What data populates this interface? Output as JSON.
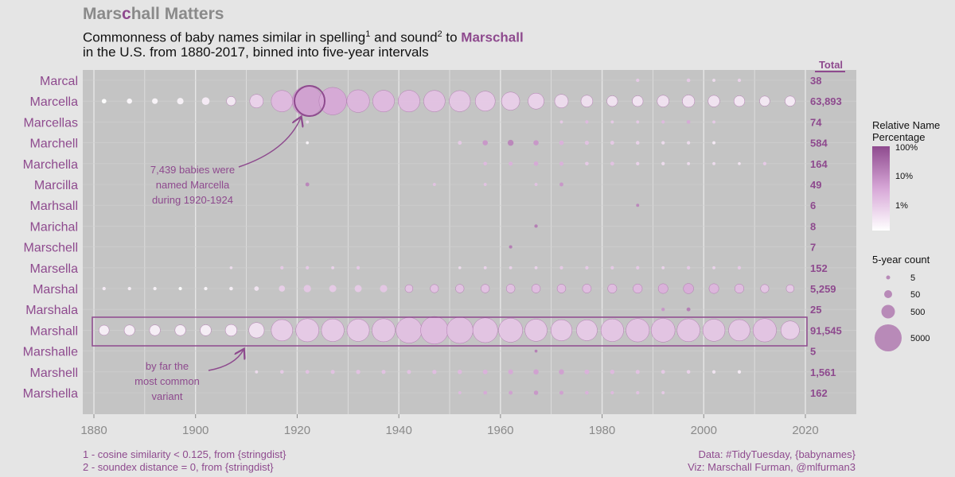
{
  "header": {
    "title_pre": "Mars",
    "title_hl": "c",
    "title_post": "hall Matters",
    "subtitle_1": "Commonness of baby names similar in spelling",
    "sup_1": "1",
    "subtitle_2": " and sound",
    "sup_2": "2",
    "subtitle_3": " to ",
    "subtitle_name": "Marschall",
    "subtitle_line2": "in the U.S. from 1880-2017, binned into five-year intervals"
  },
  "total_header": "Total",
  "annotations": {
    "marcella_1": "7,439 babies were",
    "marcella_2": "named Marcella",
    "marcella_3": "during 1920-1924",
    "marshall_1": "by far the",
    "marshall_2": "most common",
    "marshall_3": "variant"
  },
  "legend": {
    "color_title_1": "Relative Name",
    "color_title_2": "Percentage",
    "color_ticks": [
      "100%",
      "10%",
      "1%"
    ],
    "size_title": "5-year count",
    "size_ticks": [
      "5",
      "50",
      "500",
      "5000"
    ],
    "colors": {
      "low": "#ffffff",
      "high": "#8e4a8e"
    }
  },
  "footer": {
    "note_1": "1 - cosine similarity < 0.125, from {stringdist}",
    "note_2": "2 - soundex distance = 0, from {stringdist}",
    "source": "Data: #TidyTuesday, {babynames}",
    "credit": "Viz: Marschall Furman, @mlfurman3"
  },
  "chart_data": {
    "type": "scatter",
    "x_label": "",
    "x_ticks": [
      1880,
      1900,
      1920,
      1940,
      1960,
      1980,
      2000,
      2020
    ],
    "xlim": [
      1880,
      2020
    ],
    "bins": [
      1882,
      1887,
      1892,
      1897,
      1902,
      1907,
      1912,
      1917,
      1922,
      1927,
      1932,
      1937,
      1942,
      1947,
      1952,
      1957,
      1962,
      1967,
      1972,
      1977,
      1982,
      1987,
      1992,
      1997,
      2002,
      2007,
      2012,
      2017
    ],
    "size_meaning": "5-year count",
    "color_meaning": "relative name percentage (log scale)",
    "names": [
      {
        "name": "Marcal",
        "total": "38",
        "points": [
          [
            1987,
            8,
            0.3
          ],
          [
            1997,
            10,
            0.3
          ],
          [
            2002,
            6,
            0.2
          ],
          [
            2007,
            8,
            0.25
          ]
        ]
      },
      {
        "name": "Marcella",
        "total": "63,893",
        "points": [
          [
            1882,
            20,
            0.0
          ],
          [
            1887,
            30,
            0.03
          ],
          [
            1892,
            40,
            0.05
          ],
          [
            1897,
            60,
            0.07
          ],
          [
            1902,
            100,
            0.1
          ],
          [
            1907,
            180,
            0.12
          ],
          [
            1912,
            600,
            0.25
          ],
          [
            1917,
            2500,
            0.4
          ],
          [
            1922,
            7439,
            0.55
          ],
          [
            1927,
            5500,
            0.5
          ],
          [
            1932,
            3000,
            0.42
          ],
          [
            1937,
            2600,
            0.4
          ],
          [
            1942,
            2600,
            0.38
          ],
          [
            1947,
            2500,
            0.35
          ],
          [
            1952,
            2400,
            0.32
          ],
          [
            1957,
            2000,
            0.3
          ],
          [
            1962,
            1500,
            0.28
          ],
          [
            1967,
            1000,
            0.25
          ],
          [
            1972,
            600,
            0.2
          ],
          [
            1977,
            400,
            0.17
          ],
          [
            1982,
            300,
            0.15
          ],
          [
            1987,
            300,
            0.14
          ],
          [
            1992,
            400,
            0.16
          ],
          [
            1997,
            450,
            0.16
          ],
          [
            2002,
            380,
            0.15
          ],
          [
            2007,
            300,
            0.13
          ],
          [
            2012,
            250,
            0.12
          ],
          [
            2017,
            250,
            0.1
          ]
        ]
      },
      {
        "name": "Marcellas",
        "total": "74",
        "points": [
          [
            1922,
            6,
            0.2
          ],
          [
            1972,
            6,
            0.3
          ],
          [
            1977,
            8,
            0.4
          ],
          [
            1982,
            6,
            0.3
          ],
          [
            1987,
            6,
            0.3
          ],
          [
            1992,
            8,
            0.4
          ],
          [
            1997,
            10,
            0.5
          ],
          [
            2002,
            6,
            0.3
          ]
        ]
      },
      {
        "name": "Marchell",
        "total": "584",
        "points": [
          [
            1922,
            5,
            0.05
          ],
          [
            1952,
            12,
            0.3
          ],
          [
            1957,
            30,
            0.6
          ],
          [
            1962,
            45,
            0.7
          ],
          [
            1967,
            30,
            0.6
          ],
          [
            1972,
            20,
            0.45
          ],
          [
            1977,
            15,
            0.35
          ],
          [
            1982,
            12,
            0.3
          ],
          [
            1987,
            10,
            0.25
          ],
          [
            1992,
            8,
            0.2
          ],
          [
            1997,
            8,
            0.2
          ],
          [
            2002,
            6,
            0.1
          ]
        ]
      },
      {
        "name": "Marchella",
        "total": "164",
        "points": [
          [
            1957,
            10,
            0.4
          ],
          [
            1962,
            14,
            0.45
          ],
          [
            1967,
            18,
            0.5
          ],
          [
            1972,
            14,
            0.45
          ],
          [
            1977,
            10,
            0.3
          ],
          [
            1982,
            12,
            0.35
          ],
          [
            1987,
            8,
            0.25
          ],
          [
            1992,
            8,
            0.2
          ],
          [
            1997,
            6,
            0.2
          ],
          [
            2002,
            6,
            0.2
          ],
          [
            2007,
            5,
            0.15
          ],
          [
            2012,
            8,
            0.3
          ]
        ]
      },
      {
        "name": "Marcilla",
        "total": "49",
        "points": [
          [
            1922,
            12,
            0.7
          ],
          [
            1947,
            6,
            0.35
          ],
          [
            1957,
            6,
            0.35
          ],
          [
            1967,
            6,
            0.35
          ],
          [
            1972,
            12,
            0.6
          ]
        ]
      },
      {
        "name": "Marhsall",
        "total": "6",
        "points": [
          [
            1987,
            6,
            0.7
          ]
        ]
      },
      {
        "name": "Marichal",
        "total": "8",
        "points": [
          [
            1967,
            8,
            0.75
          ]
        ]
      },
      {
        "name": "Marschell",
        "total": "7",
        "points": [
          [
            1962,
            7,
            0.75
          ]
        ]
      },
      {
        "name": "Marsella",
        "total": "152",
        "points": [
          [
            1907,
            5,
            0.2
          ],
          [
            1917,
            8,
            0.3
          ],
          [
            1922,
            8,
            0.3
          ],
          [
            1927,
            6,
            0.25
          ],
          [
            1932,
            8,
            0.3
          ],
          [
            1952,
            5,
            0.2
          ],
          [
            1957,
            6,
            0.25
          ],
          [
            1962,
            6,
            0.25
          ],
          [
            1967,
            6,
            0.25
          ],
          [
            1972,
            8,
            0.3
          ],
          [
            1977,
            8,
            0.3
          ],
          [
            1982,
            8,
            0.3
          ],
          [
            1987,
            8,
            0.3
          ],
          [
            1992,
            6,
            0.25
          ],
          [
            1997,
            8,
            0.3
          ],
          [
            2002,
            6,
            0.25
          ],
          [
            2007,
            8,
            0.3
          ]
        ]
      },
      {
        "name": "Marshal",
        "total": "5,259",
        "points": [
          [
            1882,
            8,
            0.1
          ],
          [
            1887,
            8,
            0.08
          ],
          [
            1892,
            8,
            0.07
          ],
          [
            1897,
            8,
            0.0
          ],
          [
            1902,
            8,
            0.05
          ],
          [
            1907,
            10,
            0.08
          ],
          [
            1912,
            20,
            0.15
          ],
          [
            1917,
            50,
            0.28
          ],
          [
            1922,
            90,
            0.32
          ],
          [
            1927,
            80,
            0.3
          ],
          [
            1932,
            80,
            0.3
          ],
          [
            1937,
            90,
            0.32
          ],
          [
            1942,
            110,
            0.34
          ],
          [
            1947,
            130,
            0.35
          ],
          [
            1952,
            140,
            0.35
          ],
          [
            1957,
            140,
            0.35
          ],
          [
            1962,
            150,
            0.36
          ],
          [
            1967,
            150,
            0.38
          ],
          [
            1972,
            150,
            0.38
          ],
          [
            1977,
            160,
            0.38
          ],
          [
            1982,
            170,
            0.38
          ],
          [
            1987,
            180,
            0.4
          ],
          [
            1992,
            220,
            0.45
          ],
          [
            1997,
            250,
            0.48
          ],
          [
            2002,
            220,
            0.42
          ],
          [
            2007,
            180,
            0.38
          ],
          [
            2012,
            130,
            0.33
          ],
          [
            2017,
            110,
            0.3
          ]
        ]
      },
      {
        "name": "Marshala",
        "total": "25",
        "points": [
          [
            1992,
            8,
            0.6
          ],
          [
            1997,
            12,
            0.75
          ]
        ]
      },
      {
        "name": "Marshall",
        "total": "91,545",
        "points": [
          [
            1882,
            250,
            0.08
          ],
          [
            1887,
            280,
            0.08
          ],
          [
            1892,
            300,
            0.08
          ],
          [
            1897,
            300,
            0.08
          ],
          [
            1902,
            320,
            0.08
          ],
          [
            1907,
            380,
            0.1
          ],
          [
            1912,
            900,
            0.16
          ],
          [
            1917,
            2500,
            0.28
          ],
          [
            1922,
            3200,
            0.3
          ],
          [
            1927,
            3000,
            0.3
          ],
          [
            1932,
            2900,
            0.3
          ],
          [
            1937,
            3200,
            0.32
          ],
          [
            1942,
            4500,
            0.36
          ],
          [
            1947,
            5500,
            0.38
          ],
          [
            1952,
            4800,
            0.36
          ],
          [
            1957,
            4000,
            0.34
          ],
          [
            1962,
            3600,
            0.33
          ],
          [
            1967,
            2800,
            0.31
          ],
          [
            1972,
            2400,
            0.3
          ],
          [
            1977,
            2300,
            0.3
          ],
          [
            1982,
            3000,
            0.33
          ],
          [
            1987,
            3300,
            0.34
          ],
          [
            1992,
            3500,
            0.34
          ],
          [
            1997,
            3100,
            0.33
          ],
          [
            2002,
            2800,
            0.32
          ],
          [
            2007,
            2500,
            0.31
          ],
          [
            2012,
            3300,
            0.34
          ],
          [
            2017,
            1600,
            0.28
          ]
        ]
      },
      {
        "name": "Marshalle",
        "total": "5",
        "points": [
          [
            1967,
            5,
            0.75
          ]
        ]
      },
      {
        "name": "Marshell",
        "total": "1,561",
        "points": [
          [
            1912,
            6,
            0.2
          ],
          [
            1917,
            10,
            0.3
          ],
          [
            1922,
            12,
            0.35
          ],
          [
            1927,
            14,
            0.35
          ],
          [
            1932,
            16,
            0.35
          ],
          [
            1937,
            14,
            0.35
          ],
          [
            1942,
            14,
            0.35
          ],
          [
            1947,
            16,
            0.38
          ],
          [
            1952,
            18,
            0.4
          ],
          [
            1957,
            22,
            0.45
          ],
          [
            1962,
            26,
            0.5
          ],
          [
            1967,
            30,
            0.55
          ],
          [
            1972,
            30,
            0.55
          ],
          [
            1977,
            22,
            0.45
          ],
          [
            1982,
            18,
            0.4
          ],
          [
            1987,
            14,
            0.35
          ],
          [
            1992,
            12,
            0.3
          ],
          [
            1997,
            10,
            0.25
          ],
          [
            2002,
            8,
            0.15
          ],
          [
            2007,
            8,
            0.1
          ]
        ]
      },
      {
        "name": "Marshella",
        "total": "162",
        "points": [
          [
            1952,
            6,
            0.4
          ],
          [
            1957,
            10,
            0.5
          ],
          [
            1962,
            12,
            0.55
          ],
          [
            1967,
            18,
            0.6
          ],
          [
            1972,
            14,
            0.55
          ],
          [
            1977,
            10,
            0.45
          ],
          [
            1982,
            8,
            0.4
          ],
          [
            1987,
            8,
            0.35
          ],
          [
            1992,
            6,
            0.3
          ]
        ]
      }
    ]
  }
}
